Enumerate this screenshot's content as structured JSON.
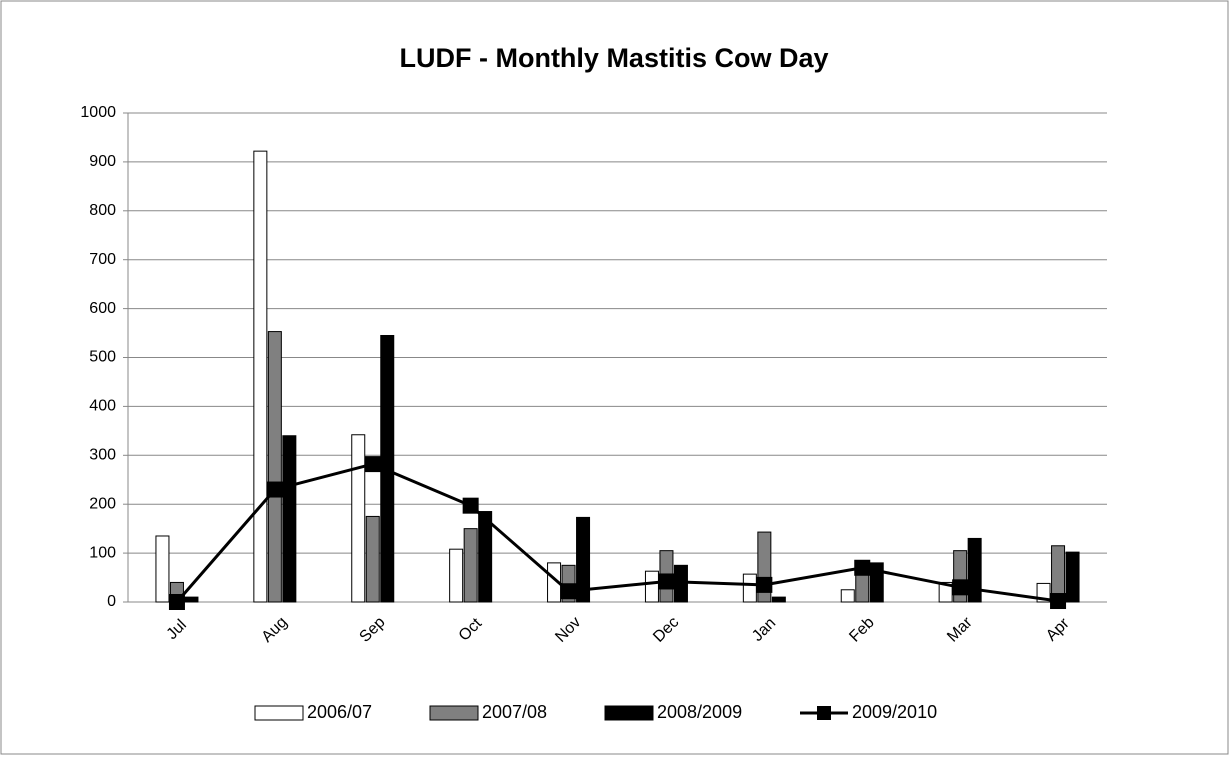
{
  "chart_data": {
    "type": "bar",
    "title": "LUDF - Monthly Mastitis Cow Day",
    "categories": [
      "Jul",
      "Aug",
      "Sep",
      "Oct",
      "Nov",
      "Dec",
      "Jan",
      "Feb",
      "Mar",
      "Apr"
    ],
    "series": [
      {
        "name": "2006/07",
        "color": "#ffffff",
        "values": [
          135,
          922,
          342,
          108,
          80,
          63,
          57,
          25,
          40,
          38
        ]
      },
      {
        "name": "2007/08",
        "color": "#808080",
        "values": [
          40,
          553,
          175,
          150,
          75,
          105,
          143,
          80,
          105,
          115
        ]
      },
      {
        "name": "2008/2009",
        "color": "#000000",
        "values": [
          10,
          340,
          545,
          185,
          173,
          75,
          10,
          80,
          130,
          102
        ]
      },
      {
        "name": "2009/2010",
        "color": "#000000",
        "type": "line",
        "values": [
          0,
          230,
          282,
          197,
          22,
          42,
          35,
          70,
          30,
          2
        ]
      }
    ],
    "ylim": [
      0,
      1000
    ],
    "yticks": [
      0,
      100,
      200,
      300,
      400,
      500,
      600,
      700,
      800,
      900,
      1000
    ],
    "grid": true,
    "legend": "bottom"
  }
}
